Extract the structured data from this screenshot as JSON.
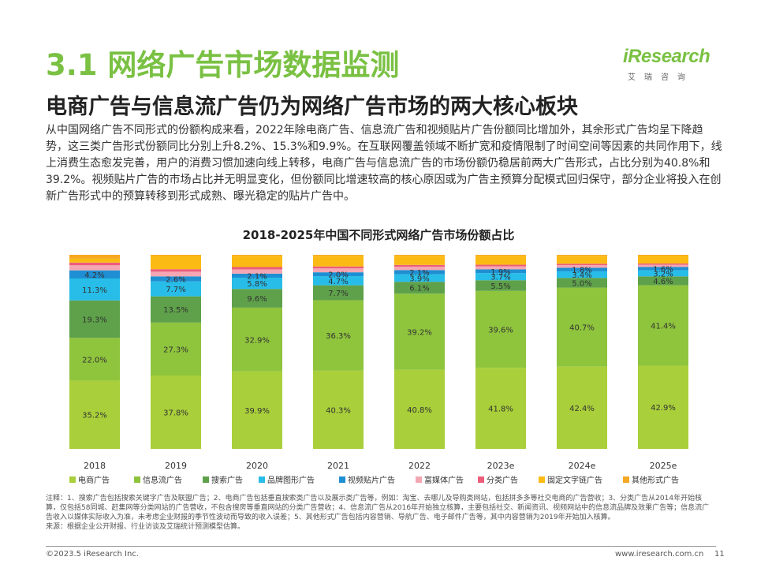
{
  "page": {
    "title": "3.1 网络广告市场数据监测",
    "brand": "iResearch",
    "brand_cn": "艾瑞咨询",
    "subtitle": "电商广告与信息流广告仍为网络广告市场的两大核心板块",
    "intro": "从中国网络广告不同形式的份额构成来看，2022年除电商广告、信息流广告和视频贴片广告份额同比增加外，其余形式广告均呈下降趋势，这三类广告形式份额同比分别上升8.2%、15.3%和9.9%。在互联网覆盖领域不断扩宽和疫情限制了时间空间等因素的共同作用下，线上消费生态愈发完善，用户的消费习惯加速向线上转移，电商广告与信息流广告的市场份额仍稳居前两大广告形式，占比分别为40.8%和39.2%。视频贴片广告的市场占比并无明显变化，但份额同比增速较高的核心原因或为广告主预算分配模式回归保守，部分企业将投入在创新广告形式中的预算转移到形式成熟、曝光稳定的贴片广告中。",
    "notes": "注释：1、搜索广告包括搜索关键字广告及联盟广告；2、电商广告包括垂直搜索类广告以及展示类广告等，例如：淘宝、去哪儿及导购类网站，包括拼多多等社交电商的广告营收；3、分类广告从2014年开始核算，仅包括58同城、赶集网等分类网站的广告营收，不包含搜房等垂直网站的分类广告营收；4、信息流广告从2016年开始独立核算，主要包括社交、新闻资讯、视频网站中的信息流品牌及效果广告等；信息流广告收入以媒体实际收入为准，未考虑企业财报的季节性波动而导致的收入误差；5、其他形式广告包括内容营销、导航广告、电子邮件广告等，其中内容营销为2019年开始加入核算。",
    "source": "来源：根据企业公开财报、行业访谈及艾瑞统计预测模型估算。",
    "copyright": "©2023.5 iResearch Inc.",
    "website": "www.iresearch.com.cn",
    "page_number": "11"
  },
  "chart_data": {
    "type": "bar",
    "stacked": true,
    "percent": true,
    "title": "2018-2025年中国不同形式网络广告市场份额占比",
    "categories": [
      "2018",
      "2019",
      "2020",
      "2021",
      "2022",
      "2023e",
      "2024e",
      "2025e"
    ],
    "ylim": [
      0,
      100
    ],
    "legend_position": "bottom",
    "series": [
      {
        "name": "电商广告",
        "color": "#a9cf3a",
        "values": [
          35.2,
          37.8,
          39.9,
          40.3,
          40.8,
          41.8,
          42.4,
          42.9
        ],
        "labels": [
          "35.2%",
          "37.8%",
          "39.9%",
          "40.3%",
          "40.8%",
          "41.8%",
          "42.4%",
          "42.9%"
        ]
      },
      {
        "name": "信息流广告",
        "color": "#8fc43d",
        "values": [
          22.0,
          27.3,
          32.9,
          36.3,
          39.2,
          39.6,
          40.7,
          41.4
        ],
        "labels": [
          "22.0%",
          "27.3%",
          "32.9%",
          "36.3%",
          "39.2%",
          "39.6%",
          "40.7%",
          "41.4%"
        ]
      },
      {
        "name": "搜索广告",
        "color": "#5ea14a",
        "values": [
          19.3,
          13.5,
          9.6,
          7.7,
          6.1,
          5.5,
          5.0,
          4.6
        ],
        "labels": [
          "19.3%",
          "13.5%",
          "9.6%",
          "7.7%",
          "6.1%",
          "5.5%",
          "5.0%",
          "4.6%"
        ]
      },
      {
        "name": "品牌图形广告",
        "color": "#27bde8",
        "values": [
          11.3,
          7.7,
          5.8,
          4.7,
          3.9,
          3.7,
          3.4,
          3.2
        ],
        "labels": [
          "11.3%",
          "7.7%",
          "5.8%",
          "4.7%",
          "3.9%",
          "3.7%",
          "3.4%",
          "3.2%"
        ]
      },
      {
        "name": "视频贴片广告",
        "color": "#1f8fd3",
        "values": [
          4.2,
          2.6,
          2.1,
          2.0,
          2.1,
          1.9,
          1.8,
          1.6
        ],
        "labels": [
          "4.2%",
          "2.6%",
          "2.1%",
          "2.0%",
          "2.1%",
          "1.9%",
          "1.8%",
          "1.6%"
        ]
      },
      {
        "name": "富媒体广告",
        "color": "#f4a7b3",
        "values": [
          2.6,
          2.4,
          2.2,
          2.0,
          1.8,
          1.6,
          1.4,
          1.2
        ],
        "labels": []
      },
      {
        "name": "分类广告",
        "color": "#ec5d7a",
        "values": [
          1.4,
          1.3,
          1.2,
          1.0,
          0.9,
          0.8,
          0.7,
          0.6
        ],
        "labels": []
      },
      {
        "name": "固定文字链广告",
        "color": "#fbbb14",
        "values": [
          2.0,
          7.0,
          5.8,
          5.5,
          4.7,
          4.6,
          4.1,
          4.1
        ],
        "labels": []
      },
      {
        "name": "其他形式广告",
        "color": "#f6a823",
        "values": [
          2.0,
          0.4,
          0.5,
          0.5,
          0.5,
          0.5,
          0.5,
          0.4
        ],
        "labels": []
      }
    ]
  }
}
